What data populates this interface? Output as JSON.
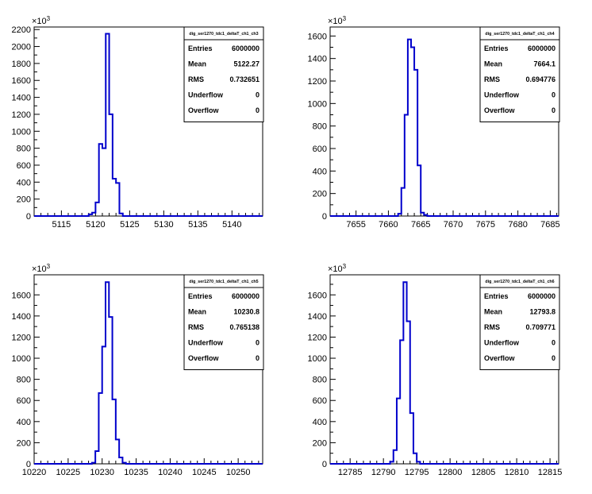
{
  "chart_data": [
    {
      "type": "bar",
      "histogram_name": "dig_ser1270_tdc1_deltaT_ch1_ch3",
      "exponent_label": "×10",
      "exponent_power": "3",
      "xlim": [
        5111,
        5144.5
      ],
      "ylim": [
        0,
        2230
      ],
      "xticks": [
        5115,
        5120,
        5125,
        5130,
        5135,
        5140
      ],
      "yticks": [
        0,
        200,
        400,
        600,
        800,
        1000,
        1200,
        1400,
        1600,
        1800,
        2000,
        2200
      ],
      "bin_width": 0.5,
      "bins": [
        [
          5119.0,
          20
        ],
        [
          5119.5,
          40
        ],
        [
          5120.0,
          160
        ],
        [
          5120.5,
          850
        ],
        [
          5121.0,
          800
        ],
        [
          5121.5,
          2150
        ],
        [
          5122.0,
          1200
        ],
        [
          5122.5,
          440
        ],
        [
          5123.0,
          390
        ],
        [
          5123.5,
          30
        ]
      ],
      "stats": [
        {
          "label": "Entries",
          "value": "6000000"
        },
        {
          "label": "Mean",
          "value": "5122.27"
        },
        {
          "label": "RMS",
          "value": "0.732651"
        },
        {
          "label": "Underflow",
          "value": "0"
        },
        {
          "label": "Overflow",
          "value": "0"
        }
      ]
    },
    {
      "type": "bar",
      "histogram_name": "dig_ser1270_tdc1_deltaT_ch1_ch4",
      "exponent_label": "×10",
      "exponent_power": "3",
      "xlim": [
        7651,
        7686.3
      ],
      "ylim": [
        0,
        1680
      ],
      "xticks": [
        7655,
        7660,
        7665,
        7670,
        7675,
        7680,
        7685
      ],
      "yticks": [
        0,
        200,
        400,
        600,
        800,
        1000,
        1200,
        1400,
        1600
      ],
      "bin_width": 0.5,
      "bins": [
        [
          7661.5,
          20
        ],
        [
          7662.0,
          250
        ],
        [
          7662.5,
          900
        ],
        [
          7663.0,
          1570
        ],
        [
          7663.5,
          1500
        ],
        [
          7664.0,
          1300
        ],
        [
          7664.5,
          450
        ],
        [
          7665.0,
          30
        ],
        [
          7665.5,
          10
        ]
      ],
      "stats": [
        {
          "label": "Entries",
          "value": "6000000"
        },
        {
          "label": "Mean",
          "value": "7664.1"
        },
        {
          "label": "RMS",
          "value": "0.694776"
        },
        {
          "label": "Underflow",
          "value": "0"
        },
        {
          "label": "Overflow",
          "value": "0"
        }
      ]
    },
    {
      "type": "bar",
      "histogram_name": "dig_ser1270_tdc1_deltaT_ch1_ch5",
      "exponent_label": "×10",
      "exponent_power": "3",
      "xlim": [
        10220,
        10253.6
      ],
      "ylim": [
        0,
        1790
      ],
      "xticks": [
        10220,
        10225,
        10230,
        10235,
        10240,
        10245,
        10250
      ],
      "yticks": [
        0,
        200,
        400,
        600,
        800,
        1000,
        1200,
        1400,
        1600
      ],
      "bin_width": 0.5,
      "bins": [
        [
          10228.5,
          10
        ],
        [
          10229.0,
          120
        ],
        [
          10229.5,
          670
        ],
        [
          10230.0,
          1110
        ],
        [
          10230.5,
          1720
        ],
        [
          10231.0,
          1390
        ],
        [
          10231.5,
          610
        ],
        [
          10232.0,
          230
        ],
        [
          10232.5,
          60
        ],
        [
          10233.0,
          10
        ]
      ],
      "stats": [
        {
          "label": "Entries",
          "value": "6000000"
        },
        {
          "label": "Mean",
          "value": "10230.8"
        },
        {
          "label": "RMS",
          "value": "0.765138"
        },
        {
          "label": "Underflow",
          "value": "0"
        },
        {
          "label": "Overflow",
          "value": "0"
        }
      ]
    },
    {
      "type": "bar",
      "histogram_name": "dig_ser1270_tdc1_deltaT_ch1_ch6",
      "exponent_label": "×10",
      "exponent_power": "3",
      "xlim": [
        12782,
        12816.3
      ],
      "ylim": [
        0,
        1790
      ],
      "xticks": [
        12785,
        12790,
        12795,
        12800,
        12805,
        12810,
        12815
      ],
      "yticks": [
        0,
        200,
        400,
        600,
        800,
        1000,
        1200,
        1400,
        1600
      ],
      "bin_width": 0.5,
      "bins": [
        [
          12791.0,
          20
        ],
        [
          12791.5,
          130
        ],
        [
          12792.0,
          620
        ],
        [
          12792.5,
          1170
        ],
        [
          12793.0,
          1720
        ],
        [
          12793.5,
          1350
        ],
        [
          12794.0,
          480
        ],
        [
          12794.5,
          100
        ],
        [
          12795.0,
          20
        ]
      ],
      "stats": [
        {
          "label": "Entries",
          "value": "6000000"
        },
        {
          "label": "Mean",
          "value": "12793.8"
        },
        {
          "label": "RMS",
          "value": "0.709771"
        },
        {
          "label": "Underflow",
          "value": "0"
        },
        {
          "label": "Overflow",
          "value": "0"
        }
      ]
    }
  ]
}
